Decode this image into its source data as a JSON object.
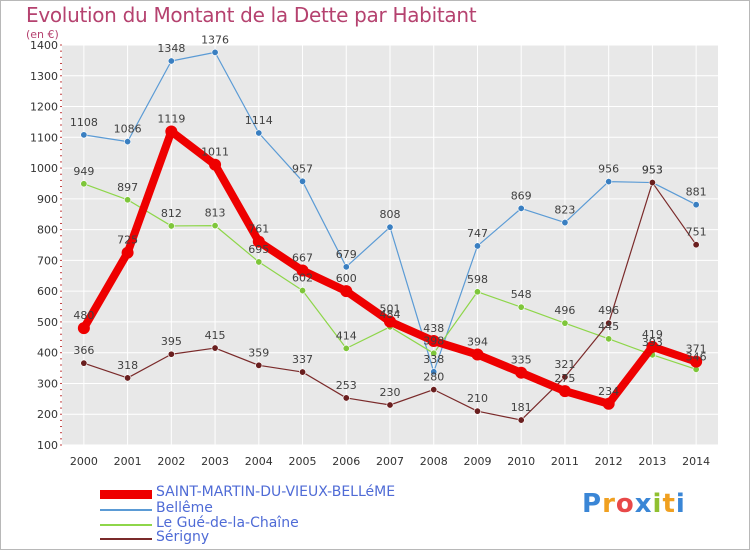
{
  "title": "Evolution du Montant de la Dette par Habitant",
  "subtitle": "(en €)",
  "logo_text": "Proxiti",
  "colors": {
    "title": "#b5426f",
    "plot_bg": "#e8e8e8",
    "grid": "#ffffff",
    "axis_text": "#333333",
    "legend_text": "#4f6bd6"
  },
  "chart_data": {
    "type": "line",
    "x": [
      "2000",
      "2001",
      "2002",
      "2003",
      "2004",
      "2005",
      "2006",
      "2007",
      "2008",
      "2009",
      "2010",
      "2011",
      "2012",
      "2013",
      "2014"
    ],
    "ylim": [
      100,
      1400
    ],
    "yticks": [
      100,
      200,
      300,
      400,
      500,
      600,
      700,
      800,
      900,
      1000,
      1100,
      1200,
      1300,
      1400
    ],
    "grid": true,
    "legend_position": "bottom-left",
    "series": [
      {
        "name": "SAINT-MARTIN-DU-VIEUX-BELLéME",
        "color": "#ee0000",
        "marker": "#ee0000",
        "width": 8,
        "values": [
          480,
          725,
          1119,
          1011,
          761,
          667,
          600,
          501,
          438,
          394,
          335,
          275,
          234,
          419,
          371
        ],
        "labels": [
          "480",
          "725",
          "1119",
          "1011",
          "761",
          "667",
          "600",
          "501",
          "438",
          "394",
          "335",
          "275",
          "234",
          "419",
          "371"
        ]
      },
      {
        "name": "Bellême",
        "color": "#5b9bd5",
        "marker": "#3a7fc1",
        "width": 1.2,
        "values": [
          1108,
          1086,
          1348,
          1376,
          1114,
          957,
          679,
          808,
          338,
          747,
          869,
          823,
          956,
          953,
          881
        ],
        "labels": [
          "1108",
          "1086",
          "1348",
          "1376",
          "1114",
          "957",
          "679",
          "808",
          "338",
          "747",
          "869",
          "823",
          "956",
          "953",
          "881"
        ]
      },
      {
        "name": "Le Gué-de-la-Chaîne",
        "color": "#8ed64a",
        "marker": "#7ec63a",
        "width": 1.2,
        "values": [
          949,
          897,
          812,
          813,
          695,
          602,
          414,
          484,
          398,
          598,
          548,
          496,
          445,
          393,
          346
        ],
        "labels": [
          "949",
          "897",
          "812",
          "813",
          "695",
          "602",
          "414",
          "484",
          "398",
          "598",
          "548",
          "496",
          "445",
          "393",
          "346"
        ]
      },
      {
        "name": "Sérigny",
        "color": "#7a2a2a",
        "marker": "#6a1f1f",
        "width": 1.2,
        "values": [
          366,
          318,
          395,
          415,
          359,
          337,
          253,
          230,
          280,
          210,
          181,
          321,
          496,
          953,
          751
        ],
        "labels": [
          "366",
          "318",
          "395",
          "415",
          "359",
          "337",
          "253",
          "230",
          "280",
          "210",
          "181",
          "321",
          "496",
          "953",
          "751"
        ]
      }
    ]
  }
}
